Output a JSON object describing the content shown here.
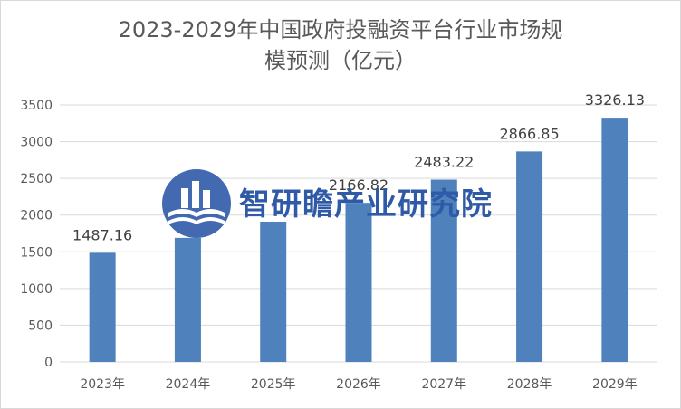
{
  "title_line1": "2023-2029年中国政府投融资平台行业市场规",
  "title_line2": "模预测（亿元）",
  "chart_data": {
    "type": "bar",
    "categories": [
      "2023年",
      "2024年",
      "2025年",
      "2026年",
      "2027年",
      "2028年",
      "2029年"
    ],
    "values": [
      1487.16,
      1690.0,
      1910.0,
      2166.82,
      2483.22,
      2866.85,
      3326.13
    ],
    "data_labels": [
      "1487.16",
      "",
      "",
      "2166.82",
      "2483.22",
      "2866.85",
      "3326.13"
    ],
    "ylim": [
      0,
      3500
    ],
    "yticks": [
      0,
      500,
      1000,
      1500,
      2000,
      2500,
      3000,
      3500
    ],
    "grid": true,
    "bar_color": "#4f81bd"
  },
  "watermark": {
    "text": "智研瞻产业研究院",
    "color": "#2f5aa8"
  }
}
